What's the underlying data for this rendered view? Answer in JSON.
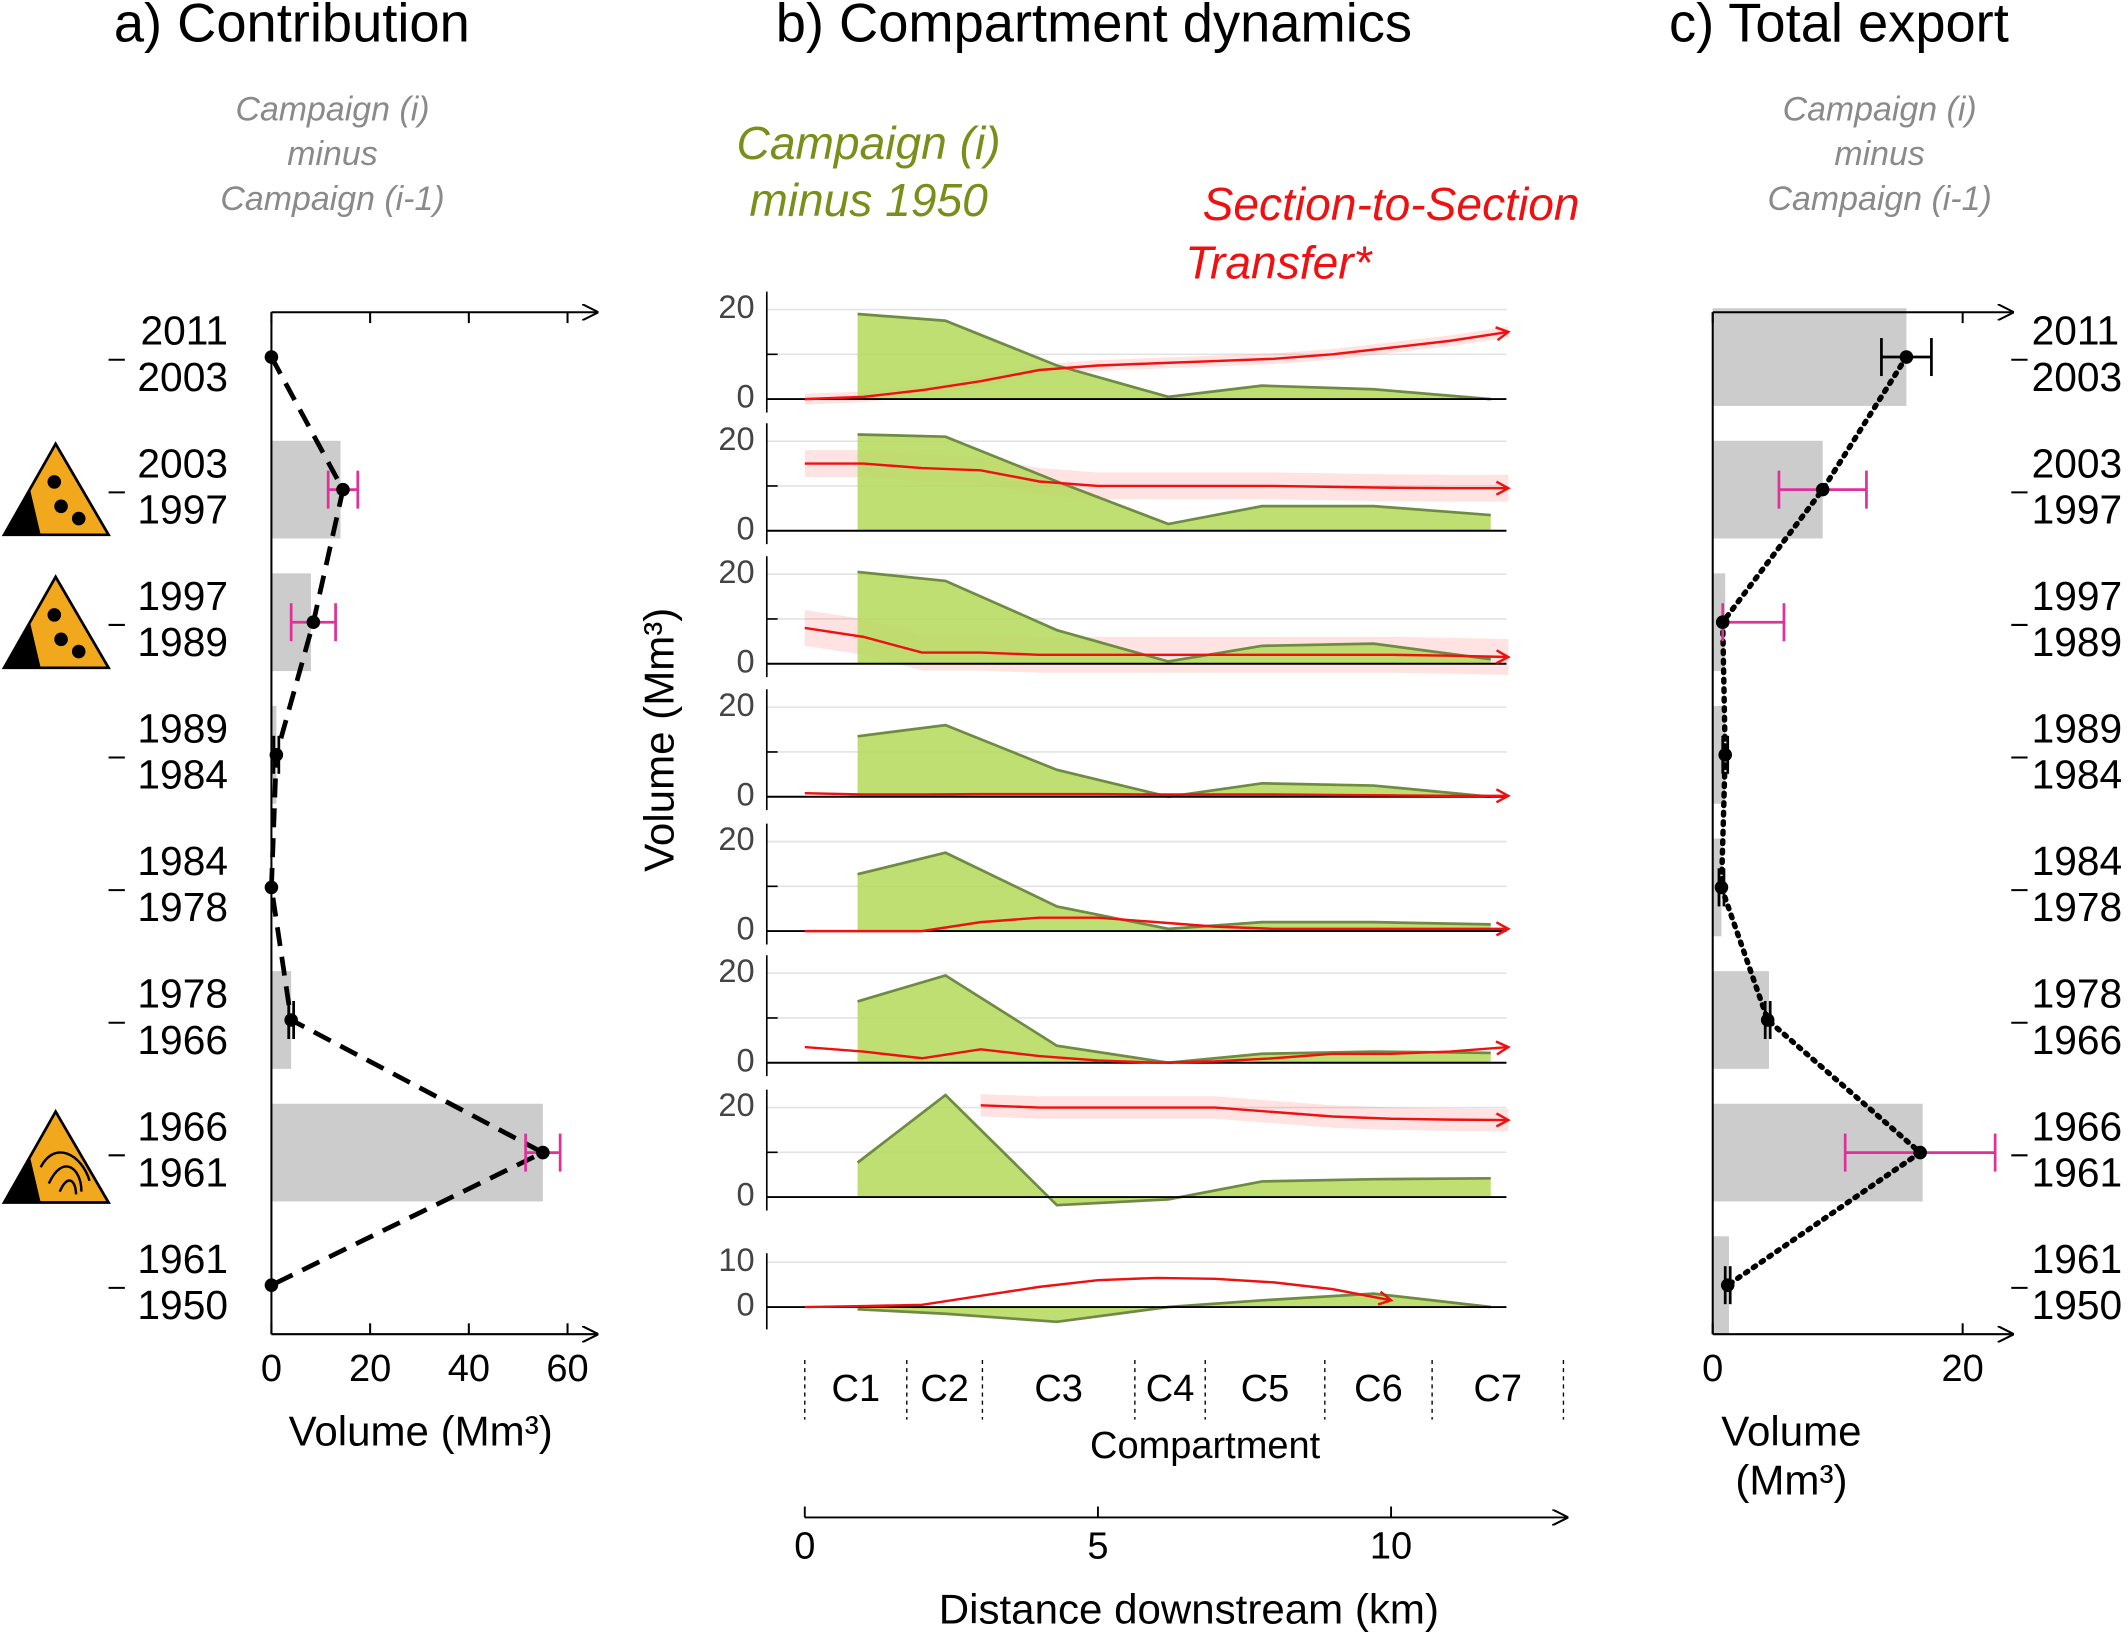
{
  "chart_data": [
    {
      "type": "bar",
      "title": "a) Contribution",
      "subtitle": [
        "Campaign (i)",
        "minus",
        "Campaign (i-1)"
      ],
      "categories": [
        [
          "2011",
          "2003"
        ],
        [
          "2003",
          "1997"
        ],
        [
          "1997",
          "1989"
        ],
        [
          "1989",
          "1984"
        ],
        [
          "1984",
          "1978"
        ],
        [
          "1978",
          "1966"
        ],
        [
          "1966",
          "1961"
        ],
        [
          "1961",
          "1950"
        ]
      ],
      "bar_values": [
        0,
        14,
        8,
        1,
        0,
        4,
        55,
        0
      ],
      "bar_color": "#cccccc",
      "point_values": [
        0,
        14.5,
        8.5,
        1,
        0,
        4,
        55,
        0
      ],
      "errors": [
        [
          0,
          0
        ],
        [
          3,
          3
        ],
        [
          4.5,
          4.5
        ],
        [
          0.5,
          0.5
        ],
        [
          0,
          0
        ],
        [
          0.5,
          0.5
        ],
        [
          3.5,
          3.5
        ],
        [
          0,
          0
        ]
      ],
      "error_colors": [
        "#000000",
        "#e0309a",
        "#e0309a",
        "#000000",
        "#000000",
        "#000000",
        "#e0309a",
        "#000000"
      ],
      "line_style": "dashed",
      "xlim": [
        0,
        66
      ],
      "xticks": [
        0,
        20,
        40,
        60
      ],
      "xlabel": [
        "Volume (Mm³)"
      ]
    },
    {
      "type": "area",
      "title": "b) Compartment dynamics",
      "legend_green": [
        "Campaign (i)",
        "minus 1950"
      ],
      "legend_red": [
        "Section-to-Section",
        "Transfer*"
      ],
      "green_color": "#b5d95a",
      "green_edge": "#6f8a45",
      "red_color": "#ee1111",
      "ylabel": "Volume (Mm³)",
      "green_x": [
        0.9,
        2.4,
        4.3,
        6.2,
        7.8,
        9.7,
        11.7
      ],
      "red_x": [
        0,
        1,
        2,
        3,
        4,
        5,
        6,
        7,
        8,
        9,
        10,
        11,
        12
      ],
      "subplots": [
        {
          "ylim": [
            -3,
            24
          ],
          "yticks": [
            0,
            20
          ],
          "minor_yticks": [
            10
          ],
          "green": [
            19,
            17.5,
            7.5,
            0.5,
            3,
            2.2,
            0
          ],
          "red": [
            0,
            0.5,
            2,
            4,
            6.5,
            7.5,
            8,
            8.5,
            9,
            10,
            11.5,
            13,
            15
          ],
          "band": 1.2
        },
        {
          "ylim": [
            -3,
            24
          ],
          "yticks": [
            0,
            20
          ],
          "minor_yticks": [
            10
          ],
          "green": [
            21.5,
            21,
            11,
            1.5,
            5.5,
            5.5,
            3.5
          ],
          "red": [
            15,
            15,
            14,
            13.5,
            11,
            10,
            10,
            10,
            10,
            9.8,
            9.6,
            9.5,
            9.5
          ],
          "band": 3
        },
        {
          "ylim": [
            -3,
            24
          ],
          "yticks": [
            0,
            20
          ],
          "minor_yticks": [
            10
          ],
          "green": [
            20.5,
            18.5,
            7.5,
            0.5,
            4,
            4.5,
            1
          ],
          "red": [
            8,
            6,
            2.5,
            2.5,
            2,
            2,
            2,
            2,
            2,
            2,
            2,
            1.8,
            1.5
          ],
          "band": 4
        },
        {
          "ylim": [
            -3,
            24
          ],
          "yticks": [
            0,
            20
          ],
          "minor_yticks": [
            10
          ],
          "green": [
            13.5,
            16,
            6,
            0,
            3,
            2.5,
            0
          ],
          "red": [
            0.8,
            0.5,
            0.5,
            0.6,
            0.6,
            0.6,
            0.5,
            0.5,
            0.5,
            0.4,
            0.3,
            0.2,
            0.2
          ],
          "band": 0
        },
        {
          "ylim": [
            -3,
            24
          ],
          "yticks": [
            0,
            20
          ],
          "minor_yticks": [
            10
          ],
          "green": [
            12.7,
            17.5,
            5.5,
            0.5,
            2,
            2,
            1.5
          ],
          "red": [
            0,
            0,
            0,
            2,
            3,
            3,
            2,
            1,
            0.5,
            0.5,
            0.5,
            0.5,
            0.5
          ],
          "band": 0
        },
        {
          "ylim": [
            -3,
            24
          ],
          "yticks": [
            0,
            20
          ],
          "minor_yticks": [
            10
          ],
          "green": [
            13.7,
            19.5,
            3.8,
            0,
            2,
            2.5,
            2.2
          ],
          "red": [
            3.5,
            2.5,
            1,
            3,
            1.5,
            0.5,
            0,
            0.3,
            1,
            2,
            2,
            2.5,
            3.5
          ],
          "band": 0
        },
        {
          "ylim": [
            -3,
            24
          ],
          "yticks": [
            0,
            20
          ],
          "minor_yticks": [
            10
          ],
          "green": [
            7.7,
            22.8,
            -1.8,
            -0.5,
            3.5,
            4,
            4.2
          ],
          "red": [
            null,
            null,
            null,
            20.5,
            20,
            20,
            20,
            20,
            19,
            18,
            17.5,
            17.3,
            17.2
          ],
          "band": 2.5
        },
        {
          "ylim": [
            -5,
            12
          ],
          "yticks": [
            0,
            10
          ],
          "minor_yticks": [],
          "green": [
            -0.5,
            -1.5,
            -3.3,
            0,
            1.5,
            3,
            0
          ],
          "red": [
            0,
            0.2,
            0.5,
            2.5,
            4.5,
            6,
            6.5,
            6.3,
            5.5,
            4,
            1.5,
            null,
            null
          ],
          "band": 0
        }
      ],
      "compartments": [
        "C1",
        "C2",
        "C3",
        "C4",
        "C5",
        "C6",
        "C7"
      ],
      "compartment_bounds": [
        0,
        1.74,
        3.03,
        5.63,
        6.83,
        8.87,
        10.7,
        12.94
      ],
      "compartment_label": "Compartment",
      "xlim": [
        0,
        13
      ],
      "xticks": [
        0,
        5,
        10
      ],
      "xlabel": "Distance downstream (km)"
    },
    {
      "type": "bar",
      "title": "c) Total export",
      "subtitle": [
        "Campaign (i)",
        "minus",
        "Campaign (i-1)"
      ],
      "categories": [
        [
          "2011",
          "2003"
        ],
        [
          "2003",
          "1997"
        ],
        [
          "1997",
          "1989"
        ],
        [
          "1989",
          "1984"
        ],
        [
          "1984",
          "1978"
        ],
        [
          "1978",
          "1966"
        ],
        [
          "1966",
          "1961"
        ],
        [
          "1961",
          "1950"
        ]
      ],
      "bar_values": [
        15.5,
        8.8,
        1,
        1,
        0.7,
        4.5,
        16.8,
        1.3
      ],
      "bar_color": "#cccccc",
      "point_values": [
        15.5,
        8.8,
        0.8,
        1,
        0.7,
        4.4,
        16.6,
        1.2
      ],
      "errors": [
        [
          2,
          2
        ],
        [
          3.5,
          3.5
        ],
        [
          0,
          4.9
        ],
        [
          0.2,
          0.2
        ],
        [
          0.2,
          0.2
        ],
        [
          0.2,
          0.2
        ],
        [
          6,
          6
        ],
        [
          0.2,
          0.2
        ]
      ],
      "error_colors": [
        "#000000",
        "#e0309a",
        "#e0309a",
        "#000000",
        "#000000",
        "#000000",
        "#e0309a",
        "#000000"
      ],
      "line_style": "dotted",
      "xlim": [
        0,
        24
      ],
      "xticks": [
        0,
        20
      ],
      "xlabel": [
        "Volume",
        "(Mm³)"
      ]
    }
  ]
}
